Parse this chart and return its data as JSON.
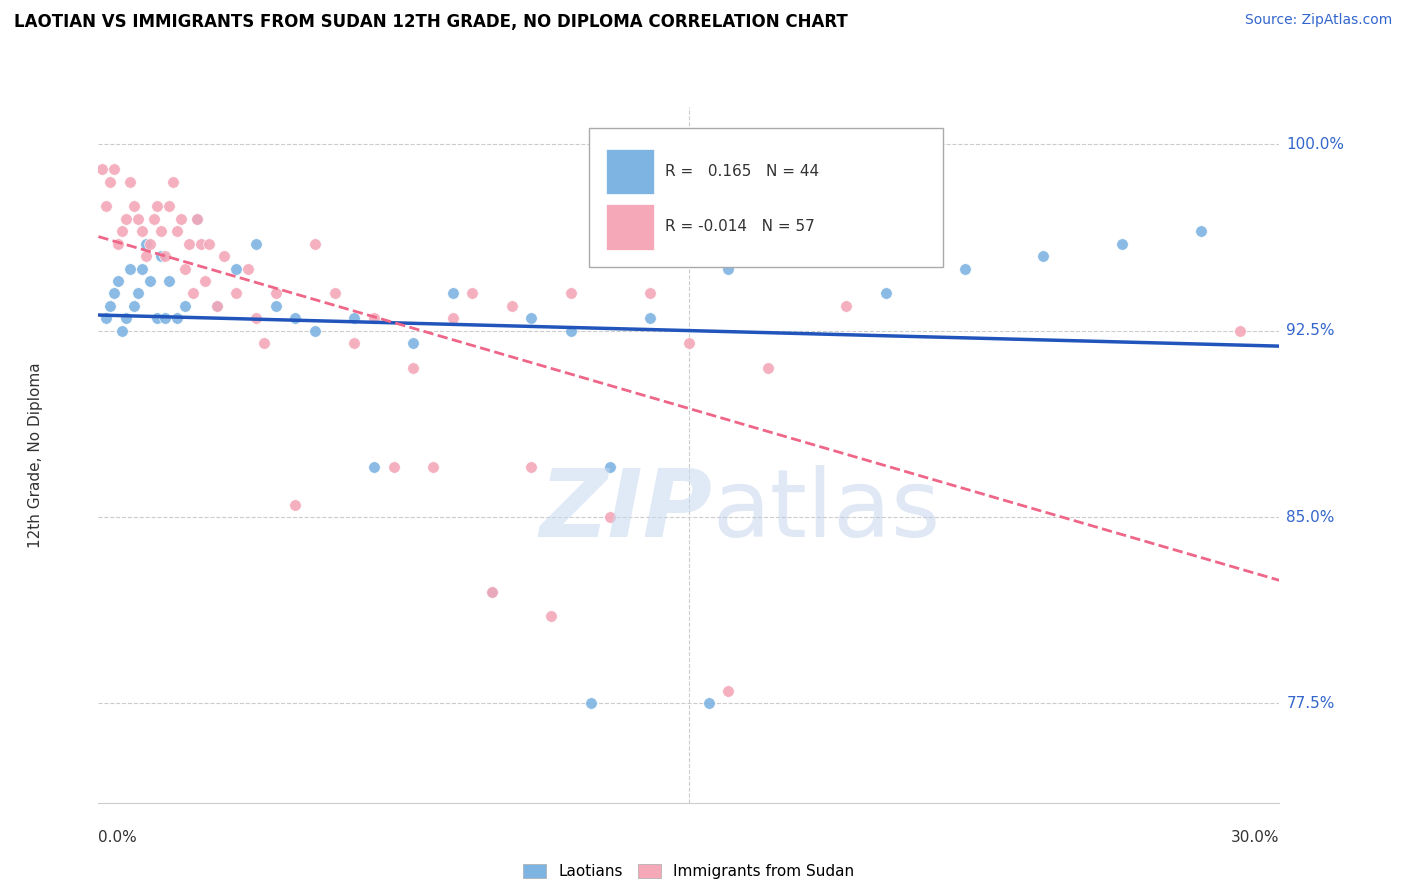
{
  "title": "LAOTIAN VS IMMIGRANTS FROM SUDAN 12TH GRADE, NO DIPLOMA CORRELATION CHART",
  "source": "Source: ZipAtlas.com",
  "ylabel": "12th Grade, No Diploma",
  "yticks": [
    0.775,
    0.85,
    0.925,
    1.0
  ],
  "ytick_labels": [
    "77.5%",
    "85.0%",
    "92.5%",
    "100.0%"
  ],
  "xmin": 0.0,
  "xmax": 0.3,
  "ymin": 0.735,
  "ymax": 1.015,
  "blue_color": "#7EB4E2",
  "pink_color": "#F4A8B8",
  "trendline_blue": "#2255BB",
  "trendline_pink": "#EE6688",
  "blue_scatter_x": [
    0.002,
    0.003,
    0.004,
    0.005,
    0.006,
    0.007,
    0.008,
    0.009,
    0.01,
    0.011,
    0.012,
    0.013,
    0.015,
    0.016,
    0.017,
    0.018,
    0.02,
    0.022,
    0.025,
    0.03,
    0.035,
    0.04,
    0.045,
    0.05,
    0.055,
    0.065,
    0.07,
    0.08,
    0.09,
    0.1,
    0.11,
    0.12,
    0.125,
    0.13,
    0.14,
    0.155,
    0.16,
    0.17,
    0.2,
    0.21,
    0.22,
    0.24,
    0.26,
    0.28
  ],
  "blue_scatter_y": [
    0.93,
    0.935,
    0.94,
    0.945,
    0.925,
    0.93,
    0.95,
    0.935,
    0.94,
    0.95,
    0.96,
    0.945,
    0.93,
    0.955,
    0.93,
    0.945,
    0.93,
    0.935,
    0.97,
    0.935,
    0.95,
    0.96,
    0.935,
    0.93,
    0.925,
    0.93,
    0.87,
    0.92,
    0.94,
    0.82,
    0.93,
    0.925,
    0.775,
    0.87,
    0.93,
    0.775,
    0.95,
    0.955,
    0.94,
    0.96,
    0.95,
    0.955,
    0.96,
    0.965
  ],
  "pink_scatter_x": [
    0.001,
    0.002,
    0.003,
    0.004,
    0.005,
    0.006,
    0.007,
    0.008,
    0.009,
    0.01,
    0.011,
    0.012,
    0.013,
    0.014,
    0.015,
    0.016,
    0.017,
    0.018,
    0.019,
    0.02,
    0.021,
    0.022,
    0.023,
    0.024,
    0.025,
    0.026,
    0.027,
    0.028,
    0.03,
    0.032,
    0.035,
    0.038,
    0.04,
    0.042,
    0.045,
    0.05,
    0.055,
    0.06,
    0.065,
    0.07,
    0.075,
    0.08,
    0.085,
    0.09,
    0.095,
    0.1,
    0.105,
    0.11,
    0.115,
    0.12,
    0.13,
    0.14,
    0.15,
    0.16,
    0.17,
    0.19,
    0.29
  ],
  "pink_scatter_y": [
    0.99,
    0.975,
    0.985,
    0.99,
    0.96,
    0.965,
    0.97,
    0.985,
    0.975,
    0.97,
    0.965,
    0.955,
    0.96,
    0.97,
    0.975,
    0.965,
    0.955,
    0.975,
    0.985,
    0.965,
    0.97,
    0.95,
    0.96,
    0.94,
    0.97,
    0.96,
    0.945,
    0.96,
    0.935,
    0.955,
    0.94,
    0.95,
    0.93,
    0.92,
    0.94,
    0.855,
    0.96,
    0.94,
    0.92,
    0.93,
    0.87,
    0.91,
    0.87,
    0.93,
    0.94,
    0.82,
    0.935,
    0.87,
    0.81,
    0.94,
    0.85,
    0.94,
    0.92,
    0.78,
    0.91,
    0.935,
    0.925
  ]
}
